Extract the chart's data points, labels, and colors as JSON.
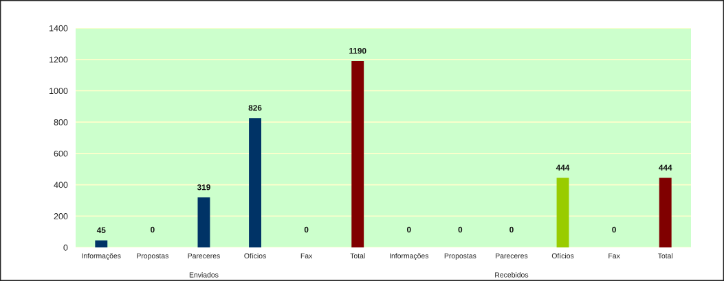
{
  "chart_data": {
    "type": "bar",
    "categories": [
      "Informações",
      "Propostas",
      "Pareceres",
      "Ofícios",
      "Fax",
      "Total",
      "Informações",
      "Propostas",
      "Pareceres",
      "Ofícios",
      "Fax",
      "Total"
    ],
    "values": [
      45,
      0,
      319,
      826,
      0,
      1190,
      0,
      0,
      0,
      444,
      0,
      444
    ],
    "colors": [
      "#003366",
      "#003366",
      "#003366",
      "#003366",
      "#003366",
      "#800000",
      "#003366",
      "#003366",
      "#003366",
      "#99cc00",
      "#003366",
      "#800000"
    ],
    "annotations": [
      "Enviados",
      "Recebidos"
    ],
    "ylim": [
      0,
      1400
    ],
    "yticks": [
      0,
      200,
      400,
      600,
      800,
      1000,
      1200,
      1400
    ],
    "grid": "y",
    "data_labels": true,
    "legend": false
  }
}
